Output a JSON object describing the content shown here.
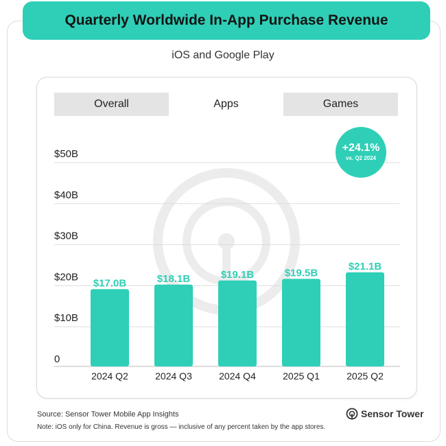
{
  "title": "Quarterly Worldwide In-App Purchase Revenue",
  "subtitle": "iOS and Google Play",
  "tabs": [
    {
      "label": "Overall",
      "active": false
    },
    {
      "label": "Apps",
      "active": true
    },
    {
      "label": "Games",
      "active": false
    }
  ],
  "badge": {
    "value": "+24.1%",
    "label": "vs. Q2 2024"
  },
  "colors": {
    "accent": "#2ecfb6",
    "bar": "#2ecfb6",
    "label": "#2ecfb6",
    "grid": "#dddddd",
    "watermark": "#ececec"
  },
  "chart_data": {
    "type": "bar",
    "title": "Quarterly Worldwide In-App Purchase Revenue",
    "subtitle": "iOS and Google Play",
    "categories": [
      "2024 Q2",
      "2024 Q3",
      "2024 Q4",
      "2025 Q1",
      "2025 Q2"
    ],
    "values": [
      17.0,
      18.1,
      19.1,
      19.5,
      21.1
    ],
    "data_labels": [
      "$17.0B",
      "$18.1B",
      "$19.1B",
      "$19.5B",
      "$21.1B"
    ],
    "unit": "billion USD",
    "ylim": [
      0,
      50
    ],
    "yticks": [
      0,
      10,
      20,
      30,
      40,
      50
    ],
    "ytick_labels": [
      "0",
      "$10B",
      "$20B",
      "$30B",
      "$40B",
      "$50B"
    ],
    "grid": true,
    "xlabel": "",
    "ylabel": ""
  },
  "footer": {
    "source": "Source: Sensor Tower Mobile App Insights",
    "note": "Note: iOS only for China. Revenue is gross — inclusive of any percent taken by the app stores.",
    "brand": "Sensor Tower"
  }
}
